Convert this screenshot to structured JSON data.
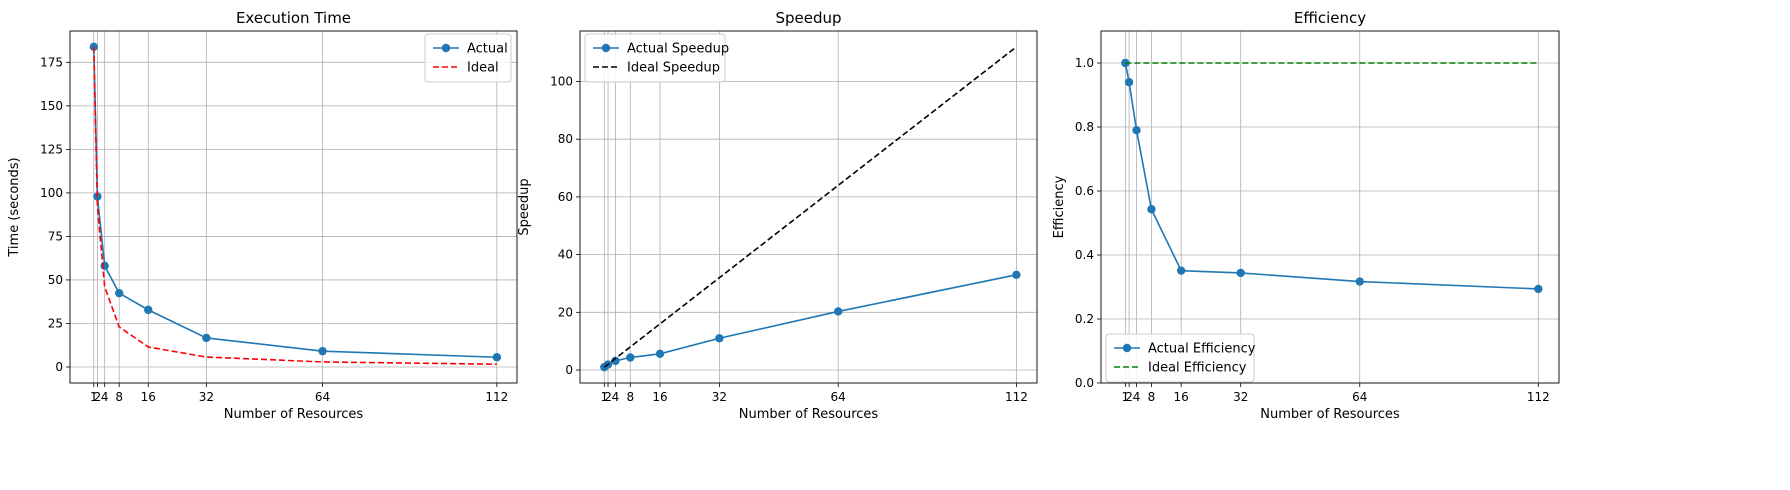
{
  "chart_data": [
    {
      "type": "line",
      "title": "Execution Time",
      "xlabel": "Number of Resources",
      "ylabel": "Time (seconds)",
      "xlim": [
        -5.55,
        117.55
      ],
      "ylim": [
        -9.2,
        193.0
      ],
      "xticks": [
        1,
        2,
        4,
        8,
        16,
        32,
        64,
        112
      ],
      "yticks": [
        0,
        25,
        50,
        75,
        100,
        125,
        150,
        175
      ],
      "grid": true,
      "legend": "top-right",
      "series": [
        {
          "name": "Actual",
          "color": "#1f77b4",
          "style": "solid",
          "marker": "circle",
          "x": [
            1,
            2,
            4,
            8,
            16,
            32,
            64,
            112
          ],
          "y": [
            183.9,
            97.9,
            58.1,
            42.4,
            32.8,
            16.7,
            9.1,
            5.6
          ]
        },
        {
          "name": "Ideal",
          "color": "#ff0000",
          "style": "dashed",
          "marker": "none",
          "x": [
            1,
            2,
            4,
            8,
            16,
            32,
            64,
            112
          ],
          "y": [
            183.9,
            92.0,
            46.0,
            23.0,
            11.5,
            5.7,
            2.9,
            1.6
          ]
        }
      ]
    },
    {
      "type": "line",
      "title": "Speedup",
      "xlabel": "Number of Resources",
      "ylabel": "Speedup",
      "xlim": [
        -5.55,
        117.55
      ],
      "ylim": [
        -4.5,
        117.5
      ],
      "xticks": [
        1,
        2,
        4,
        8,
        16,
        32,
        64,
        112
      ],
      "yticks": [
        0,
        20,
        40,
        60,
        80,
        100
      ],
      "grid": true,
      "legend": "top-left",
      "series": [
        {
          "name": "Actual Speedup",
          "color": "#1f77b4",
          "style": "solid",
          "marker": "circle",
          "x": [
            1,
            2,
            4,
            8,
            16,
            32,
            64,
            112
          ],
          "y": [
            1.0,
            1.88,
            3.17,
            4.34,
            5.61,
            11.0,
            20.3,
            33.0
          ]
        },
        {
          "name": "Ideal Speedup",
          "color": "#000000",
          "style": "dashed",
          "marker": "none",
          "x": [
            1,
            112
          ],
          "y": [
            1,
            112
          ]
        }
      ]
    },
    {
      "type": "line",
      "title": "Efficiency",
      "xlabel": "Number of Resources",
      "ylabel": "Efficiency",
      "xlim": [
        -5.55,
        117.55
      ],
      "ylim": [
        0,
        1.1
      ],
      "xticks": [
        1,
        2,
        4,
        8,
        16,
        32,
        64,
        112
      ],
      "yticks": [
        "0.0",
        "0.2",
        "0.4",
        "0.6",
        "0.8",
        "1.0"
      ],
      "grid": true,
      "legend": "bottom-left",
      "series": [
        {
          "name": "Actual Efficiency",
          "color": "#1f77b4",
          "style": "solid",
          "marker": "circle",
          "x": [
            1,
            2,
            4,
            8,
            16,
            32,
            64,
            112
          ],
          "y": [
            1.0,
            0.94,
            0.79,
            0.543,
            0.351,
            0.344,
            0.317,
            0.294
          ]
        },
        {
          "name": "Ideal Efficiency",
          "color": "#008000",
          "style": "dashed",
          "marker": "none",
          "x": [
            1,
            112
          ],
          "y": [
            1.0,
            1.0
          ]
        }
      ]
    }
  ]
}
